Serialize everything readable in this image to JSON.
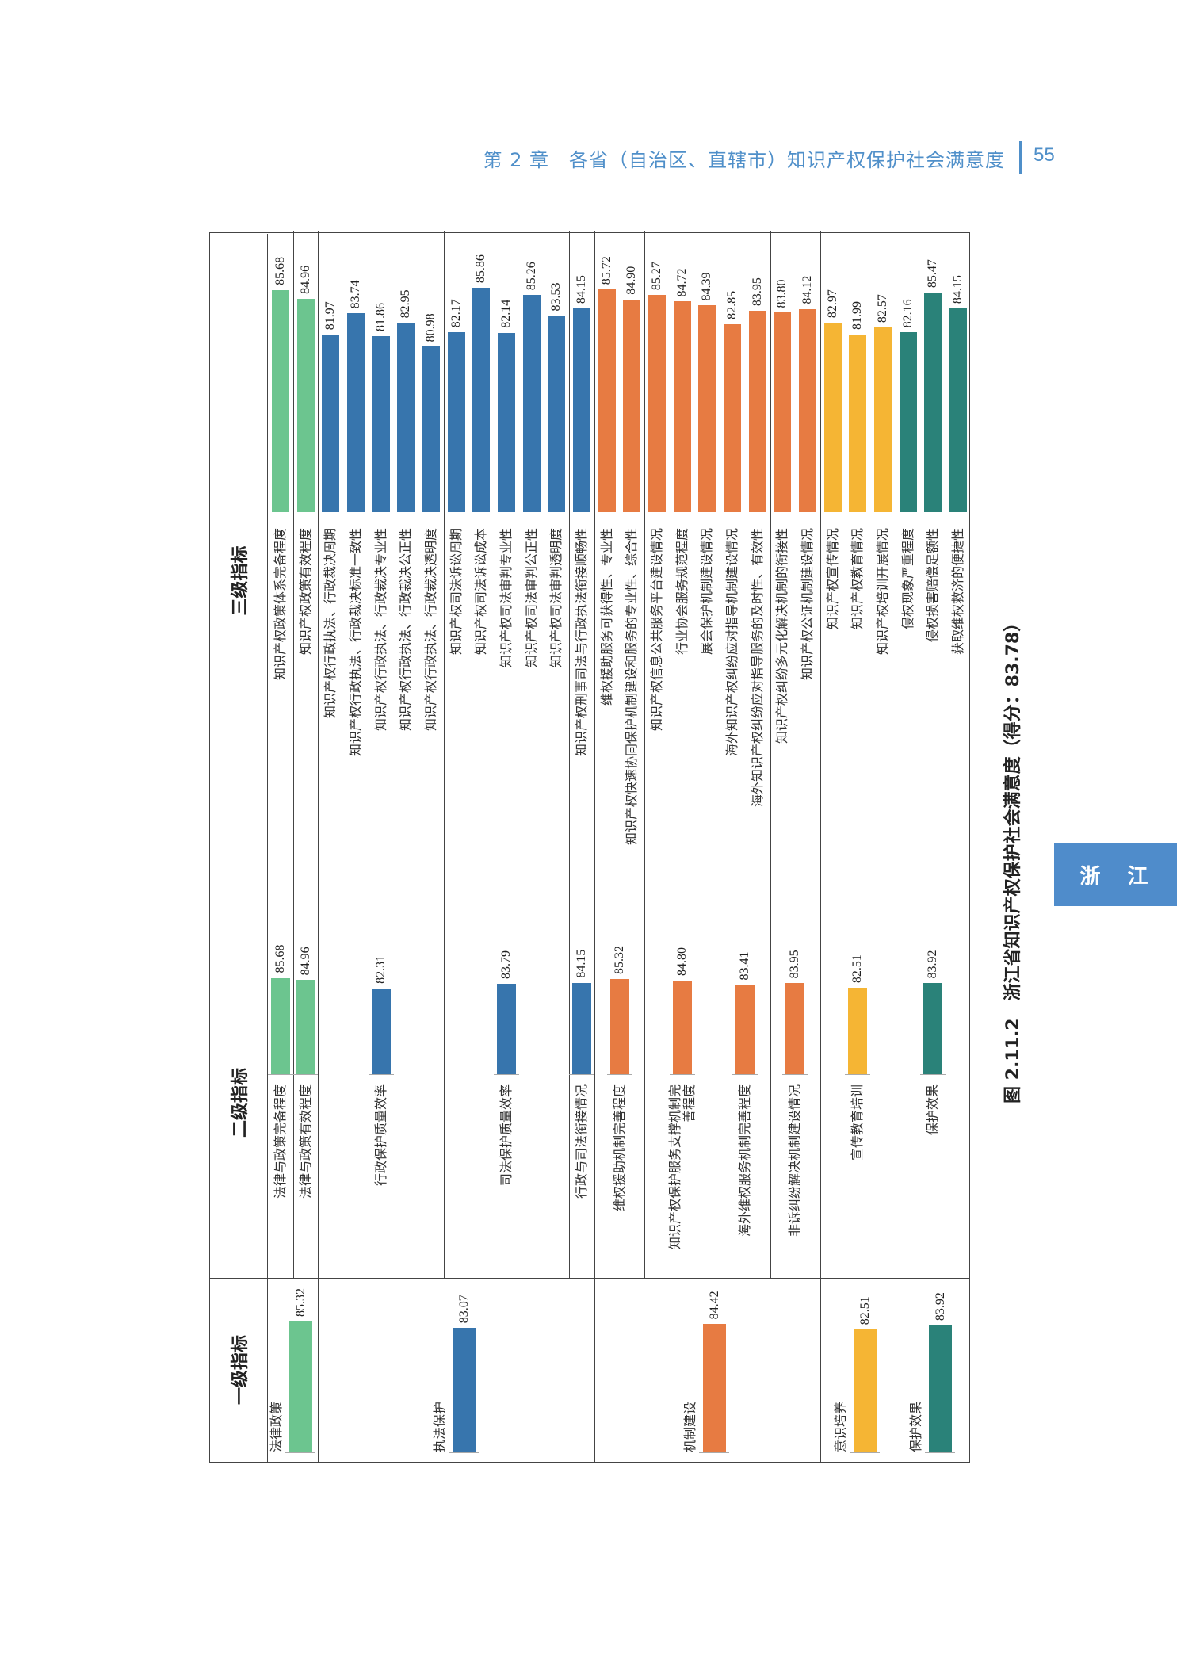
{
  "header": {
    "chapter": "第 2 章　各省（自治区、直辖市）知识产权保护社会满意度",
    "page": "55"
  },
  "side_tab": "浙　江",
  "caption": "图 2.11.2　浙江省知识产权保护社会满意度（得分：83.78）",
  "chart_data": {
    "type": "bar",
    "orientation": "horizontal-hierarchical",
    "column_headers": [
      "一级指标",
      "二级指标",
      "三级指标"
    ],
    "colors": {
      "法律政策": "#6cc58f",
      "执法保护": "#3775ad",
      "机制建设": "#e77b42",
      "意识培养": "#f5b534",
      "保护效果": "#2a8279"
    },
    "level1": [
      {
        "name": "法律政策",
        "value": 85.32
      },
      {
        "name": "执法保护",
        "value": 83.07
      },
      {
        "name": "机制建设",
        "value": 84.42
      },
      {
        "name": "意识培养",
        "value": 82.51
      },
      {
        "name": "保护效果",
        "value": 83.92
      }
    ],
    "level2": [
      {
        "name": "法律与政策完备程度",
        "value": 85.68,
        "parent": "法律政策",
        "items": [
          {
            "name": "知识产权政策体系完备程度",
            "value": 85.68
          }
        ]
      },
      {
        "name": "法律与政策有效程度",
        "value": 84.96,
        "parent": "法律政策",
        "items": [
          {
            "name": "知识产权政策有效程度",
            "value": 84.96
          }
        ]
      },
      {
        "name": "行政保护质量效率",
        "value": 82.31,
        "parent": "执法保护",
        "items": [
          {
            "name": "知识产权行政执法、行政裁决周期",
            "value": 81.97
          },
          {
            "name": "知识产权行政执法、行政裁决标准一致性",
            "value": 83.74
          },
          {
            "name": "知识产权行政执法、行政裁决专业性",
            "value": 81.86
          },
          {
            "name": "知识产权行政执法、行政裁决公正性",
            "value": 82.95
          },
          {
            "name": "知识产权行政执法、行政裁决透明度",
            "value": 80.98
          }
        ]
      },
      {
        "name": "司法保护质量效率",
        "value": 83.79,
        "parent": "执法保护",
        "items": [
          {
            "name": "知识产权司法诉讼周期",
            "value": 82.17
          },
          {
            "name": "知识产权司法诉讼成本",
            "value": 85.86
          },
          {
            "name": "知识产权司法审判专业性",
            "value": 82.14
          },
          {
            "name": "知识产权司法审判公正性",
            "value": 85.26
          },
          {
            "name": "知识产权司法审判透明度",
            "value": 83.53
          }
        ]
      },
      {
        "name": "行政与司法衔接情况",
        "value": 84.15,
        "parent": "执法保护",
        "items": [
          {
            "name": "知识产权刑事司法与行政执法衔接顺畅性",
            "value": 84.15
          }
        ]
      },
      {
        "name": "维权援助机制完善程度",
        "value": 85.32,
        "parent": "机制建设",
        "items": [
          {
            "name": "维权援助服务可获得性、专业性",
            "value": 85.72
          },
          {
            "name": "知识产权快速协同保护机制建设和服务的专业性、综合性",
            "value": 84.9
          }
        ]
      },
      {
        "name": "知识产权保护服务支撑机制完善程度",
        "value": 84.8,
        "parent": "机制建设",
        "items": [
          {
            "name": "知识产权信息公共服务平台建设情况",
            "value": 85.27
          },
          {
            "name": "行业协会服务规范程度",
            "value": 84.72
          },
          {
            "name": "展会保护机制建设情况",
            "value": 84.39
          }
        ]
      },
      {
        "name": "海外维权服务机制完善程度",
        "value": 83.41,
        "parent": "机制建设",
        "items": [
          {
            "name": "海外知识产权纠纷应对指导机制建设情况",
            "value": 82.85
          },
          {
            "name": "海外知识产权纠纷应对指导服务的及时性、有效性",
            "value": 83.95
          }
        ]
      },
      {
        "name": "非诉纠纷解决机制建设情况",
        "value": 83.95,
        "parent": "机制建设",
        "items": [
          {
            "name": "知识产权纠纷多元化解决机制的衔接性",
            "value": 83.8
          },
          {
            "name": "知识产权公证机制建设情况",
            "value": 84.12
          }
        ]
      },
      {
        "name": "宣传教育培训",
        "value": 82.51,
        "parent": "意识培养",
        "items": [
          {
            "name": "知识产权宣传情况",
            "value": 82.97
          },
          {
            "name": "知识产权教育情况",
            "value": 81.99
          },
          {
            "name": "知识产权培训开展情况",
            "value": 82.57
          }
        ]
      },
      {
        "name": "保护效果",
        "value": 83.92,
        "parent": "保护效果",
        "items": [
          {
            "name": "侵权现象严重程度",
            "value": 82.16
          },
          {
            "name": "侵权损害赔偿足额性",
            "value": 85.47
          },
          {
            "name": "获取维权救济的便捷性",
            "value": 84.15
          }
        ]
      }
    ]
  }
}
